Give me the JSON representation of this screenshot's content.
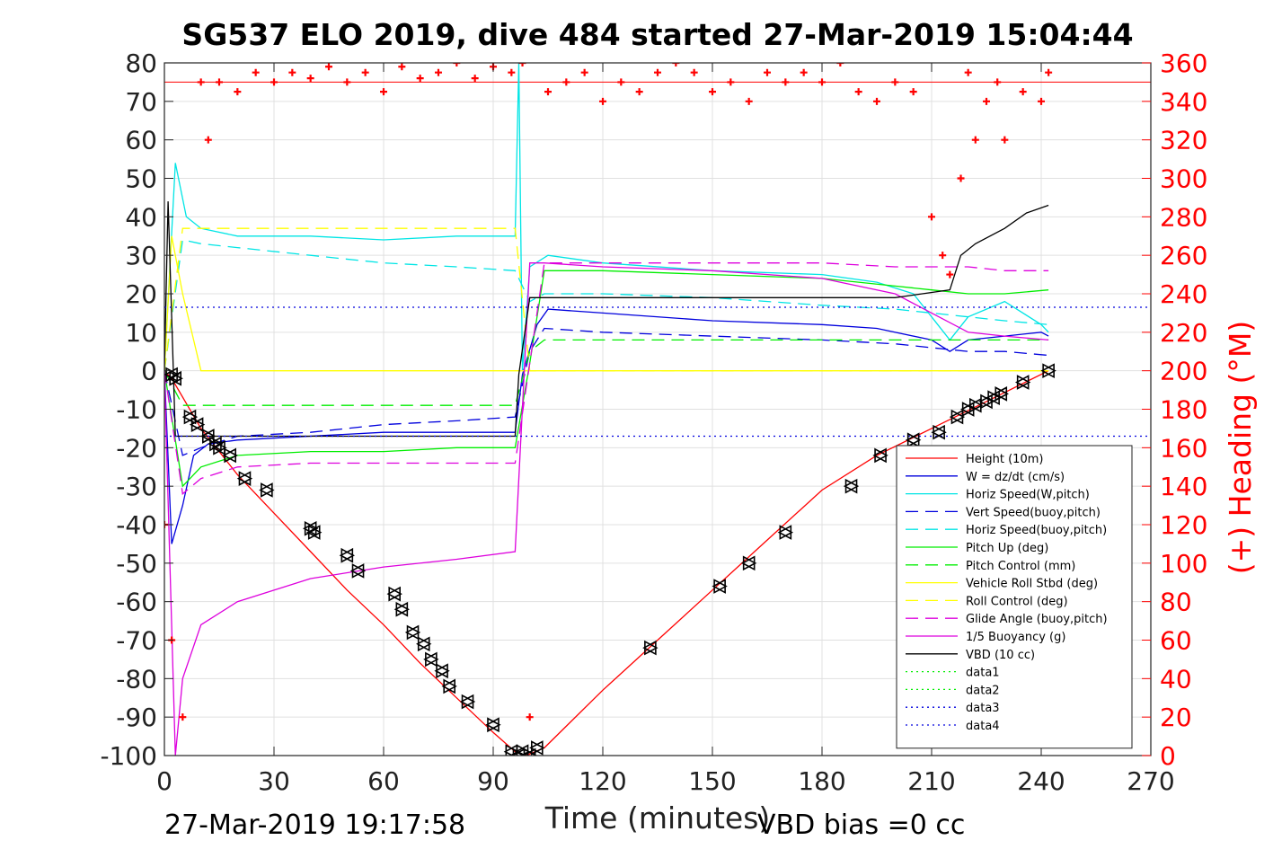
{
  "chart_data": {
    "type": "line",
    "title": "SG537 ELO 2019, dive 484 started 27-Mar-2019 15:04:44",
    "xlabel": "Time (minutes)",
    "ylabel_right": "(+) Heading (°M)",
    "footer_left": "27-Mar-2019 19:17:58",
    "footer_right": "VBD bias =0 cc",
    "xlim": [
      0,
      270
    ],
    "ylim_left": [
      -100,
      80
    ],
    "ylim_right": [
      0,
      360
    ],
    "x_ticks": [
      "0",
      "30",
      "60",
      "90",
      "120",
      "150",
      "180",
      "210",
      "240",
      "270"
    ],
    "y_ticks_left": [
      "80",
      "70",
      "60",
      "50",
      "40",
      "30",
      "20",
      "10",
      "0",
      "-10",
      "-20",
      "-30",
      "-40",
      "-50",
      "-60",
      "-70",
      "-80",
      "-90",
      "-100"
    ],
    "y_ticks_right": [
      "360",
      "340",
      "320",
      "300",
      "280",
      "260",
      "240",
      "220",
      "200",
      "180",
      "160",
      "140",
      "120",
      "100",
      "80",
      "60",
      "40",
      "20",
      "0"
    ],
    "grid": true,
    "legend_position": "bottom-right",
    "series": [
      {
        "name": "Height (10m)",
        "color": "#ff0000",
        "style": "solid",
        "x": [
          0,
          2,
          10,
          20,
          30,
          40,
          50,
          60,
          70,
          80,
          90,
          96,
          99,
          104,
          120,
          135,
          150,
          165,
          180,
          195,
          210,
          225,
          242
        ],
        "y": [
          0,
          -2,
          -15,
          -27,
          -37,
          -47,
          -57,
          -66,
          -76,
          -85,
          -94,
          -99,
          -100,
          -98,
          -83,
          -70,
          -57,
          -44,
          -31,
          -22,
          -15,
          -8,
          0
        ]
      },
      {
        "name": "W = dz/dt (cm/s)",
        "color": "#0000dd",
        "style": "solid",
        "x": [
          0,
          2,
          5,
          8,
          12,
          20,
          40,
          60,
          80,
          96,
          98,
          102,
          105,
          120,
          150,
          180,
          195,
          210,
          215,
          220,
          230,
          240,
          242
        ],
        "y": [
          0,
          -45,
          -35,
          -22,
          -19,
          -18,
          -17,
          -16,
          -16,
          -16,
          -1,
          12,
          16,
          15,
          13,
          12,
          11,
          8,
          5,
          8,
          9,
          10,
          9
        ]
      },
      {
        "name": "Horiz Speed(W,pitch)",
        "color": "#00e5e5",
        "style": "solid",
        "x": [
          0,
          3,
          6,
          10,
          20,
          40,
          60,
          80,
          96,
          97,
          98,
          100,
          105,
          120,
          150,
          180,
          195,
          205,
          210,
          215,
          220,
          230,
          240,
          242
        ],
        "y": [
          0,
          54,
          40,
          37,
          35,
          35,
          34,
          35,
          35,
          80,
          0,
          27,
          30,
          28,
          26,
          25,
          23,
          20,
          14,
          8,
          14,
          18,
          12,
          10
        ]
      },
      {
        "name": "Vert Speed(buoy,pitch)",
        "color": "#0000dd",
        "style": "dashed",
        "x": [
          0,
          5,
          10,
          20,
          40,
          60,
          80,
          96,
          100,
          104,
          120,
          150,
          180,
          200,
          210,
          220,
          230,
          242
        ],
        "y": [
          0,
          -22,
          -20,
          -17,
          -16,
          -14,
          -13,
          -12,
          5,
          11,
          10,
          9,
          8,
          7,
          6,
          5,
          5,
          4
        ]
      },
      {
        "name": "Horiz Speed(buoy,pitch)",
        "color": "#00e5e5",
        "style": "dashed",
        "x": [
          0,
          5,
          10,
          20,
          40,
          60,
          80,
          96,
          100,
          104,
          120,
          150,
          180,
          200,
          210,
          220,
          230,
          242
        ],
        "y": [
          0,
          34,
          33,
          32,
          30,
          28,
          27,
          26,
          18,
          20,
          20,
          19,
          17,
          16,
          15,
          14,
          13,
          12
        ]
      },
      {
        "name": "Pitch Up (deg)",
        "color": "#00ee00",
        "style": "solid",
        "x": [
          0,
          5,
          10,
          20,
          40,
          60,
          80,
          96,
          100,
          104,
          120,
          150,
          180,
          200,
          210,
          220,
          230,
          242
        ],
        "y": [
          0,
          -30,
          -25,
          -22,
          -21,
          -21,
          -20,
          -20,
          2,
          26,
          26,
          25,
          24,
          22,
          21,
          20,
          20,
          21
        ]
      },
      {
        "name": "Pitch Control (mm)",
        "color": "#00ee00",
        "style": "dashed",
        "x": [
          0,
          5,
          96,
          100,
          104,
          200,
          242
        ],
        "y": [
          0,
          -9,
          -9,
          5,
          8,
          8,
          8
        ]
      },
      {
        "name": "Vehicle Roll Stbd (deg)",
        "color": "#ffff00",
        "style": "solid",
        "x": [
          0,
          2,
          5,
          10,
          20,
          40,
          60,
          80,
          96,
          100,
          104,
          140,
          180,
          200,
          230,
          242
        ],
        "y": [
          0,
          35,
          20,
          0,
          0,
          0,
          0,
          0,
          0,
          0,
          0,
          0,
          0,
          0,
          0,
          0
        ]
      },
      {
        "name": "Roll Control (deg)",
        "color": "#ffff00",
        "style": "dashed",
        "x": [
          0,
          5,
          96,
          100,
          104,
          200,
          242
        ],
        "y": [
          0,
          37,
          37,
          0,
          0,
          0,
          0
        ]
      },
      {
        "name": "Glide Angle (buoy,pitch)",
        "color": "#dd00dd",
        "style": "dashed",
        "x": [
          0,
          5,
          10,
          20,
          40,
          60,
          80,
          96,
          100,
          104,
          120,
          150,
          180,
          200,
          210,
          220,
          230,
          242
        ],
        "y": [
          0,
          -32,
          -28,
          -25,
          -24,
          -24,
          -24,
          -24,
          2,
          28,
          28,
          28,
          28,
          27,
          27,
          27,
          26,
          26
        ]
      },
      {
        "name": "1/5 Buoyancy (g)",
        "color": "#dd00dd",
        "style": "solid",
        "x": [
          0,
          3,
          5,
          10,
          20,
          40,
          60,
          80,
          96,
          100,
          104,
          120,
          150,
          180,
          200,
          210,
          220,
          230,
          242
        ],
        "y": [
          0,
          -100,
          -80,
          -66,
          -60,
          -54,
          -51,
          -49,
          -47,
          28,
          28,
          27,
          26,
          24,
          20,
          15,
          10,
          9,
          8
        ]
      },
      {
        "name": "VBD (10 cc)",
        "color": "#000000",
        "style": "solid",
        "x": [
          0,
          1,
          3,
          96,
          97,
          100,
          104,
          200,
          215,
          218,
          222,
          230,
          236,
          242
        ],
        "y": [
          0,
          44,
          -17,
          -17,
          -1,
          19,
          19,
          19,
          21,
          30,
          33,
          37,
          41,
          43
        ]
      },
      {
        "name": "data1",
        "color": "#00ee00",
        "style": "dotted",
        "x": [],
        "y": []
      },
      {
        "name": "data2",
        "color": "#00ee00",
        "style": "dotted",
        "x": [],
        "y": []
      },
      {
        "name": "data3",
        "color": "#0000dd",
        "style": "dotted",
        "x": [
          0,
          270
        ],
        "y": [
          16.5,
          16.5
        ]
      },
      {
        "name": "data4",
        "color": "#0000dd",
        "style": "dotted",
        "x": [
          0,
          270
        ],
        "y": [
          -17,
          -17
        ]
      }
    ],
    "reference_lines_left": [
      {
        "color": "#ff0000",
        "y": 75
      }
    ],
    "heading_series": {
      "color": "#ff0000",
      "marker": "+",
      "x": [
        0,
        2,
        5,
        10,
        12,
        15,
        20,
        25,
        30,
        35,
        40,
        45,
        50,
        55,
        60,
        65,
        70,
        75,
        80,
        85,
        90,
        95,
        98,
        100,
        105,
        110,
        115,
        120,
        125,
        130,
        135,
        140,
        145,
        150,
        155,
        160,
        165,
        170,
        175,
        180,
        185,
        190,
        195,
        200,
        205,
        210,
        213,
        215,
        218,
        220,
        222,
        225,
        228,
        230,
        235,
        240,
        242
      ],
      "y": [
        120,
        60,
        20,
        350,
        320,
        350,
        345,
        355,
        350,
        355,
        352,
        358,
        350,
        355,
        345,
        358,
        352,
        355,
        360,
        352,
        358,
        355,
        360,
        20,
        345,
        350,
        355,
        340,
        350,
        345,
        355,
        360,
        355,
        345,
        350,
        340,
        355,
        350,
        355,
        350,
        360,
        345,
        340,
        350,
        345,
        280,
        260,
        250,
        300,
        355,
        320,
        340,
        350,
        320,
        345,
        340,
        355
      ]
    },
    "markers": {
      "symbol": "triangle",
      "color": "#000000",
      "x": [
        2,
        3,
        7,
        9,
        12,
        14,
        15,
        18,
        22,
        28,
        40,
        41,
        50,
        53,
        63,
        65,
        68,
        71,
        73,
        76,
        78,
        83,
        90,
        95,
        97,
        98,
        100,
        102,
        133,
        152,
        160,
        170,
        188,
        196,
        205,
        212,
        217,
        220,
        222,
        225,
        227,
        229,
        235,
        242
      ],
      "y": [
        -1,
        -2,
        -12,
        -14,
        -17,
        -19,
        -20,
        -22,
        -28,
        -31,
        -41,
        -42,
        -48,
        -52,
        -58,
        -62,
        -68,
        -71,
        -75,
        -78,
        -82,
        -86,
        -92,
        -99,
        -100,
        -99,
        -100,
        -98,
        -72,
        -56,
        -50,
        -42,
        -30,
        -22,
        -18,
        -16,
        -12,
        -10,
        -9,
        -8,
        -7,
        -6,
        -3,
        0
      ]
    }
  }
}
